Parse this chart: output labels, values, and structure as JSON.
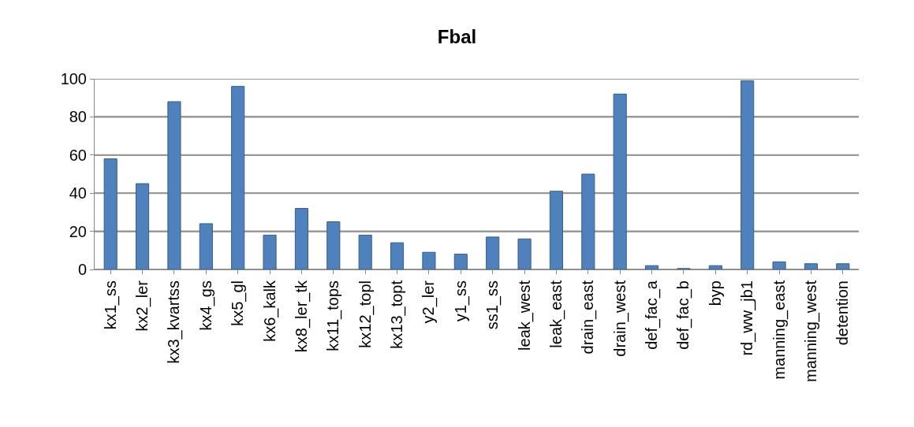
{
  "chart_data": {
    "type": "bar",
    "title": "Fbal",
    "categories": [
      "kx1_ss",
      "kx2_ler",
      "kx3_kvartss",
      "kx4_gs",
      "kx5_gl",
      "kx6_kalk",
      "kx8_ler_tk",
      "kx11_tops",
      "kx12_topl",
      "kx13_topt",
      "y2_ler",
      "y1_ss",
      "ss1_ss",
      "leak_west",
      "leak_east",
      "drain_east",
      "drain_west",
      "def_fac_a",
      "def_fac_b",
      "byp",
      "rd_ww_jb1",
      "manning_east",
      "manning_west",
      "detention"
    ],
    "values": [
      58,
      45,
      88,
      24,
      96,
      18,
      32,
      25,
      18,
      14,
      9,
      8,
      17,
      16,
      41,
      50,
      92,
      2,
      0.5,
      2,
      99,
      4,
      3,
      3
    ],
    "color": "#4f81bd",
    "ylim": [
      0,
      100
    ],
    "yticks": [
      0,
      20,
      40,
      60,
      80,
      100
    ],
    "grid": "y"
  }
}
